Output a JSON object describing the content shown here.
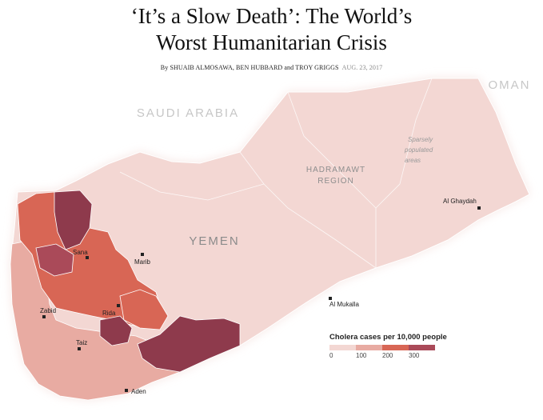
{
  "headline": {
    "line1": "‘It’s a Slow Death’: The World’s",
    "line2": "Worst Humanitarian Crisis"
  },
  "byline": {
    "prefix": "By ",
    "authors_a": "SHUAIB ALMOSAWA, BEN HUBBARD",
    "and": " and ",
    "authors_b": "TROY GRIGGS",
    "date": "AUG. 23, 2017"
  },
  "map": {
    "country_label": "YEMEN",
    "neighbor_labels": {
      "saudi_arabia": "SAUDI ARABIA",
      "oman": "OMAN"
    },
    "region_label": {
      "line1": "HADRAMAWT",
      "line2": "REGION"
    },
    "annotation": {
      "line1": "Sparsely",
      "line2": "populated",
      "line3": "areas"
    },
    "cities": {
      "sana": "Sana",
      "marib": "Marib",
      "zabid": "Zabid",
      "rida": "Rida",
      "taiz": "Taiz",
      "aden": "Aden",
      "al_mukalla": "Al Mukalla",
      "al_ghaydah": "Al Ghaydah"
    },
    "colors": {
      "level_0": "#f3d7d3",
      "level_1": "#e8aba2",
      "level_2": "#d86655",
      "level_3": "#aa4a59",
      "level_4": "#8e3a4c"
    }
  },
  "legend": {
    "title": "Cholera cases per 10,000 people",
    "ticks": [
      "0",
      "100",
      "200",
      "300"
    ]
  }
}
